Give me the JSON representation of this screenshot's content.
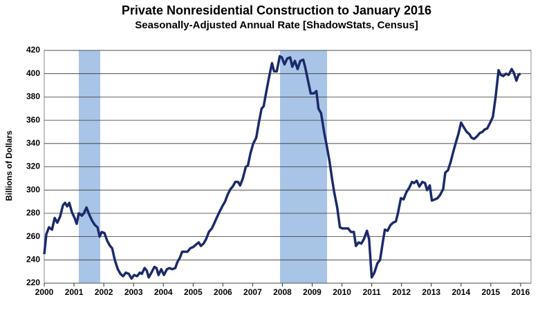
{
  "chart_data": {
    "type": "line",
    "title": "Private Nonresidential Construction to January 2016",
    "subtitle": "Seasonally-Adjusted Annual Rate [ShadowStats, Census]",
    "y_label": "Billions  of Dollars",
    "xlim": [
      2000,
      2016.35
    ],
    "xticks": [
      2000,
      2001,
      2002,
      2003,
      2004,
      2005,
      2006,
      2007,
      2008,
      2009,
      2010,
      2011,
      2012,
      2013,
      2014,
      2015,
      2016
    ],
    "ylim": [
      220,
      420
    ],
    "yticks": [
      220,
      240,
      260,
      280,
      300,
      320,
      340,
      360,
      380,
      400,
      420
    ],
    "grid": true,
    "shade_color": "#a8c4e6",
    "shaded_regions": [
      [
        2001.16,
        2001.88
      ],
      [
        2007.92,
        2009.5
      ]
    ],
    "x": [
      2000.0,
      2000.07,
      2000.16,
      2000.26,
      2000.35,
      2000.44,
      2000.53,
      2000.63,
      2000.7,
      2000.77,
      2000.84,
      2000.93,
      2001.02,
      2001.09,
      2001.16,
      2001.26,
      2001.33,
      2001.42,
      2001.51,
      2001.6,
      2001.7,
      2001.79,
      2001.86,
      2001.93,
      2002.02,
      2002.12,
      2002.21,
      2002.28,
      2002.37,
      2002.47,
      2002.56,
      2002.65,
      2002.74,
      2002.84,
      2002.93,
      2003.02,
      2003.12,
      2003.21,
      2003.28,
      2003.37,
      2003.44,
      2003.51,
      2003.6,
      2003.7,
      2003.77,
      2003.84,
      2003.93,
      2004.02,
      2004.12,
      2004.21,
      2004.3,
      2004.4,
      2004.47,
      2004.56,
      2004.63,
      2004.72,
      2004.81,
      2004.91,
      2005.0,
      2005.09,
      2005.19,
      2005.26,
      2005.35,
      2005.44,
      2005.53,
      2005.63,
      2005.72,
      2005.79,
      2005.88,
      2005.98,
      2006.07,
      2006.16,
      2006.26,
      2006.33,
      2006.42,
      2006.51,
      2006.58,
      2006.67,
      2006.77,
      2006.84,
      2006.93,
      2007.02,
      2007.12,
      2007.21,
      2007.3,
      2007.37,
      2007.47,
      2007.56,
      2007.65,
      2007.72,
      2007.81,
      2007.91,
      2007.98,
      2008.07,
      2008.16,
      2008.26,
      2008.33,
      2008.42,
      2008.51,
      2008.6,
      2008.7,
      2008.77,
      2008.86,
      2008.95,
      2009.05,
      2009.14,
      2009.21,
      2009.3,
      2009.4,
      2009.49,
      2009.58,
      2009.67,
      2009.74,
      2009.84,
      2009.93,
      2010.02,
      2010.12,
      2010.21,
      2010.3,
      2010.4,
      2010.47,
      2010.56,
      2010.65,
      2010.74,
      2010.84,
      2010.91,
      2011.0,
      2011.09,
      2011.19,
      2011.28,
      2011.37,
      2011.44,
      2011.53,
      2011.63,
      2011.72,
      2011.81,
      2011.88,
      2011.98,
      2012.07,
      2012.16,
      2012.26,
      2012.35,
      2012.42,
      2012.51,
      2012.6,
      2012.7,
      2012.79,
      2012.86,
      2012.95,
      2013.02,
      2013.12,
      2013.21,
      2013.3,
      2013.4,
      2013.47,
      2013.56,
      2013.65,
      2013.74,
      2013.84,
      2013.91,
      2014.0,
      2014.09,
      2014.19,
      2014.28,
      2014.35,
      2014.44,
      2014.53,
      2014.63,
      2014.72,
      2014.79,
      2014.88,
      2014.98,
      2015.07,
      2015.16,
      2015.26,
      2015.33,
      2015.42,
      2015.51,
      2015.6,
      2015.7,
      2015.77,
      2015.86,
      2015.93,
      2016.0
    ],
    "series": [
      {
        "color": "#1b2a6b",
        "values": [
          245,
          262,
          268,
          266,
          276,
          272,
          277,
          287,
          289,
          286,
          289,
          281,
          276,
          271,
          280,
          278,
          280,
          285,
          279,
          274,
          270,
          268,
          260,
          264,
          263,
          256,
          252,
          250,
          240,
          232,
          228,
          226,
          229,
          228,
          224,
          227,
          226,
          229,
          228,
          233,
          231,
          225,
          229,
          234,
          233,
          227,
          232,
          227,
          232,
          233,
          232,
          233,
          238,
          242,
          247,
          247,
          247,
          250,
          251,
          253,
          255,
          252,
          254,
          258,
          264,
          267,
          272,
          276,
          281,
          286,
          290,
          296,
          301,
          303,
          307,
          307,
          304,
          310,
          320,
          321,
          332,
          340,
          345,
          358,
          370,
          372,
          386,
          398,
          409,
          402,
          402,
          415,
          414,
          408,
          413,
          414,
          406,
          411,
          404,
          411,
          412,
          405,
          394,
          383,
          383,
          385,
          370,
          366,
          350,
          338,
          325,
          309,
          298,
          285,
          268,
          267,
          267,
          267,
          264,
          264,
          252,
          255,
          254,
          258,
          265,
          258,
          225,
          229,
          237,
          240,
          255,
          266,
          265,
          270,
          272,
          273,
          280,
          293,
          292,
          298,
          302,
          307,
          306,
          308,
          303,
          307,
          306,
          300,
          304,
          291,
          292,
          293,
          296,
          301,
          315,
          317,
          324,
          333,
          342,
          348,
          358,
          354,
          350,
          348,
          345,
          344,
          346,
          349,
          350,
          352,
          353,
          358,
          363,
          380,
          403,
          399,
          398,
          400,
          399,
          404,
          401,
          394,
          399,
          400
        ]
      }
    ]
  }
}
